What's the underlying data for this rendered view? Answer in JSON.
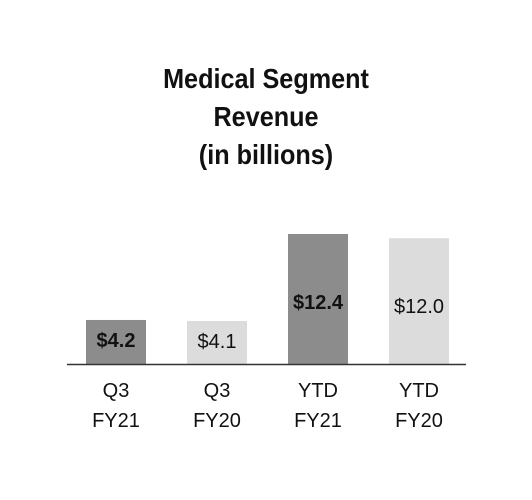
{
  "chart_data": {
    "type": "bar",
    "title_lines": [
      "Medical Segment",
      "Revenue",
      "(in billions)"
    ],
    "categories": [
      [
        "Q3",
        "FY21"
      ],
      [
        "Q3",
        "FY20"
      ],
      [
        "YTD",
        "FY21"
      ],
      [
        "YTD",
        "FY20"
      ]
    ],
    "values": [
      4.2,
      4.1,
      12.4,
      12.0
    ],
    "data_labels": [
      "$4.2",
      "$4.1",
      "$12.4",
      "$12.0"
    ],
    "bar_colors": [
      "#8c8c8c",
      "#dcdcdc",
      "#8c8c8c",
      "#dcdcdc"
    ],
    "label_bold": [
      true,
      false,
      true,
      false
    ],
    "ylim": [
      0,
      12.4
    ],
    "grid": false,
    "legend": "none"
  }
}
